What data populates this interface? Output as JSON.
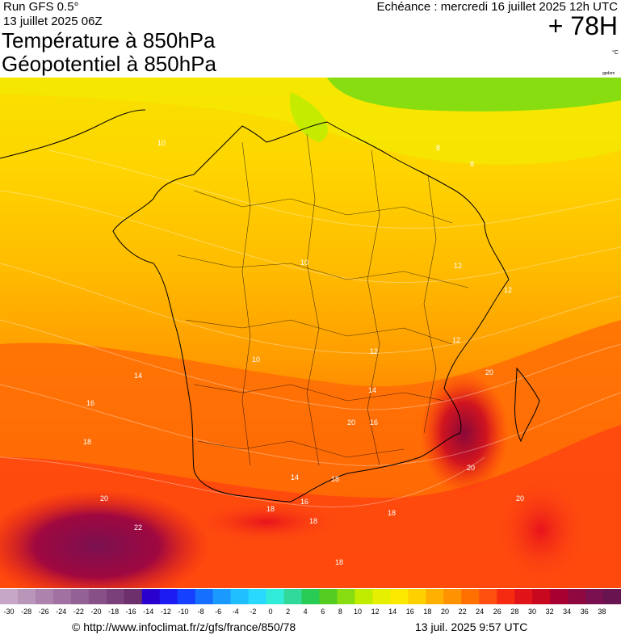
{
  "header": {
    "run": "Run GFS 0.5°",
    "date": "13 juillet 2025 06Z",
    "title1": "Température à 850hPa",
    "title2": "Géopotentiel à 850hPa",
    "echeance": "Echéance : mercredi 16 juillet 2025 12h UTC",
    "horizon": "+ 78H",
    "unit": "°C",
    "credit": "gpdam"
  },
  "map_labels": [
    "10",
    "8",
    "8",
    "10",
    "12",
    "12",
    "14",
    "16",
    "18",
    "20",
    "22",
    "20",
    "18",
    "16",
    "14",
    "12",
    "10",
    "12",
    "14",
    "16",
    "18",
    "20",
    "18",
    "20",
    "20",
    "18",
    "18"
  ],
  "scale": {
    "ticks": [
      "-30",
      "-28",
      "-26",
      "-24",
      "-22",
      "-20",
      "-18",
      "-16",
      "-14",
      "-12",
      "-10",
      "-8",
      "-6",
      "-4",
      "-2",
      "0",
      "2",
      "4",
      "6",
      "8",
      "10",
      "12",
      "14",
      "16",
      "18",
      "20",
      "22",
      "24",
      "26",
      "28",
      "30",
      "32",
      "34",
      "36",
      "38"
    ],
    "colors": [
      "#c7a7c7",
      "#b995b9",
      "#ad83ad",
      "#a172a1",
      "#946194",
      "#875087",
      "#7a407a",
      "#6d306d",
      "#2a00cf",
      "#1d1bf3",
      "#1540ff",
      "#1670ff",
      "#1a9aff",
      "#1fbfff",
      "#2ad9ff",
      "#31ecd9",
      "#30d99a",
      "#28cc55",
      "#55cc22",
      "#88dd11",
      "#c0ec00",
      "#e6ef00",
      "#fde800",
      "#ffd000",
      "#ffb000",
      "#ff9200",
      "#ff7000",
      "#ff5010",
      "#f52a10",
      "#e01418",
      "#c8081e",
      "#a80030",
      "#900840",
      "#7a1050",
      "#681450"
    ]
  },
  "footer": {
    "url": "© http://www.infoclimat.fr/z/gfs/france/850/78",
    "stamp": "13 juil. 2025  9:57 UTC"
  }
}
